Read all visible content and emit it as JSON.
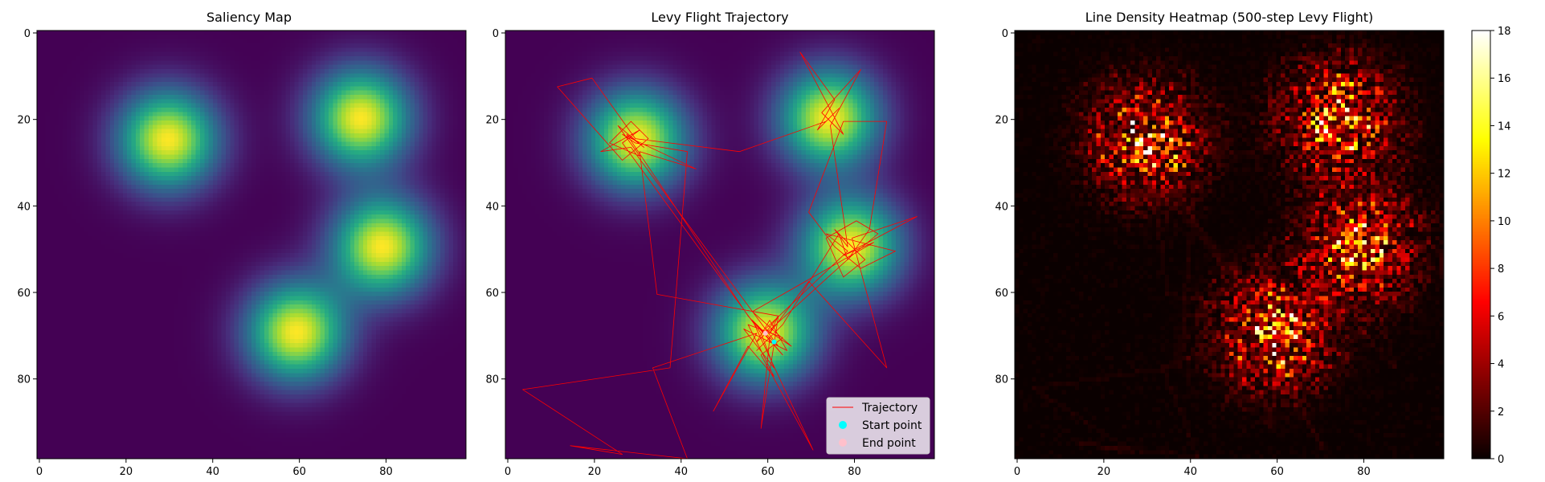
{
  "chart_data": [
    {
      "type": "heatmap",
      "title": "Saliency Map",
      "xlim": [
        0,
        99
      ],
      "ylim": [
        99,
        0
      ],
      "xticks": [
        0,
        20,
        40,
        60,
        80
      ],
      "yticks": [
        0,
        20,
        40,
        60,
        80
      ],
      "colormap": "viridis",
      "peaks": [
        {
          "x": 30,
          "y": 25,
          "sigma": 8
        },
        {
          "x": 75,
          "y": 20,
          "sigma": 8
        },
        {
          "x": 80,
          "y": 50,
          "sigma": 8
        },
        {
          "x": 60,
          "y": 70,
          "sigma": 8
        }
      ]
    },
    {
      "type": "line",
      "title": "Levy Flight Trajectory",
      "xlim": [
        0,
        99
      ],
      "ylim": [
        99,
        0
      ],
      "xticks": [
        0,
        20,
        40,
        60,
        80
      ],
      "yticks": [
        0,
        20,
        40,
        60,
        80
      ],
      "legend_position": "lower-right",
      "legend": [
        {
          "label": "Trajectory",
          "color": "#ff0000",
          "marker": "line"
        },
        {
          "label": "Start point",
          "color": "#00ffff",
          "marker": "dot"
        },
        {
          "label": "End point",
          "color": "#ffc0cb",
          "marker": "dot"
        }
      ],
      "series": [
        {
          "name": "Trajectory",
          "color": "#ff0000",
          "points": [
            [
              62,
              72
            ],
            [
              58,
              68
            ],
            [
              64,
              75
            ],
            [
              56,
              66
            ],
            [
              28,
              24
            ],
            [
              32,
              27
            ],
            [
              26,
              22
            ],
            [
              31,
              29
            ],
            [
              24,
              26
            ],
            [
              29,
              21
            ],
            [
              33,
              25
            ],
            [
              27,
              30
            ],
            [
              12,
              13
            ],
            [
              20,
              11
            ],
            [
              30,
              25
            ],
            [
              54,
              28
            ],
            [
              74,
              21
            ],
            [
              77,
              18
            ],
            [
              72,
              23
            ],
            [
              76,
              16
            ],
            [
              68,
              5
            ],
            [
              78,
              24
            ],
            [
              73,
              19
            ],
            [
              82,
              9
            ],
            [
              75,
              22
            ],
            [
              79,
              50
            ],
            [
              76,
              46
            ],
            [
              83,
              53
            ],
            [
              78,
              57
            ],
            [
              74,
              48
            ],
            [
              81,
              44
            ],
            [
              86,
              47
            ],
            [
              80,
              52
            ],
            [
              58,
              72
            ],
            [
              61,
              67
            ],
            [
              65,
              74
            ],
            [
              55,
              69
            ],
            [
              62,
              78
            ],
            [
              59,
              70
            ],
            [
              27,
              26
            ],
            [
              31,
              23
            ],
            [
              22,
              28
            ],
            [
              29,
              27
            ],
            [
              60,
              69
            ],
            [
              66,
              73
            ],
            [
              57,
              65
            ],
            [
              85,
              49
            ],
            [
              78,
              52
            ],
            [
              95,
              43
            ],
            [
              80,
              48
            ],
            [
              88,
              78
            ],
            [
              70,
              58
            ],
            [
              61,
              70
            ],
            [
              63,
              66
            ],
            [
              35,
              61
            ],
            [
              31,
              28
            ],
            [
              44,
              32
            ],
            [
              27,
              24
            ],
            [
              30,
              26
            ],
            [
              42,
              28
            ],
            [
              38,
              78
            ],
            [
              4,
              83
            ],
            [
              27,
              98
            ],
            [
              15,
              96
            ],
            [
              42,
              99
            ],
            [
              34,
              78
            ],
            [
              58,
              70
            ],
            [
              48,
              88
            ],
            [
              56,
              73
            ],
            [
              62,
              80
            ],
            [
              56,
              68
            ],
            [
              64,
              71
            ],
            [
              59,
              75
            ],
            [
              71,
              97
            ],
            [
              57,
              67
            ],
            [
              63,
              73
            ],
            [
              60,
              69
            ],
            [
              79,
              51
            ],
            [
              74,
              47
            ],
            [
              90,
              51
            ],
            [
              82,
              55
            ],
            [
              76,
              50
            ],
            [
              70,
              42
            ],
            [
              78,
              21
            ],
            [
              88,
              21
            ],
            [
              84,
              46
            ],
            [
              79,
              53
            ],
            [
              77,
              47
            ],
            [
              64,
              68
            ],
            [
              58,
              74
            ],
            [
              61,
              71
            ],
            [
              59,
              92
            ],
            [
              63,
              66
            ],
            [
              60,
              70
            ]
          ]
        }
      ],
      "start_point": [
        62,
        72
      ],
      "end_point": [
        60,
        70
      ]
    },
    {
      "type": "heatmap",
      "title": "Line Density Heatmap (500-step Levy Flight)",
      "xlim": [
        0,
        99
      ],
      "ylim": [
        99,
        0
      ],
      "xticks": [
        0,
        20,
        40,
        60,
        80
      ],
      "yticks": [
        0,
        20,
        40,
        60,
        80
      ],
      "colormap": "hot",
      "colorbar": {
        "min": 0,
        "max": 18,
        "ticks": [
          0,
          2,
          4,
          6,
          8,
          10,
          12,
          14,
          16,
          18
        ]
      }
    }
  ]
}
